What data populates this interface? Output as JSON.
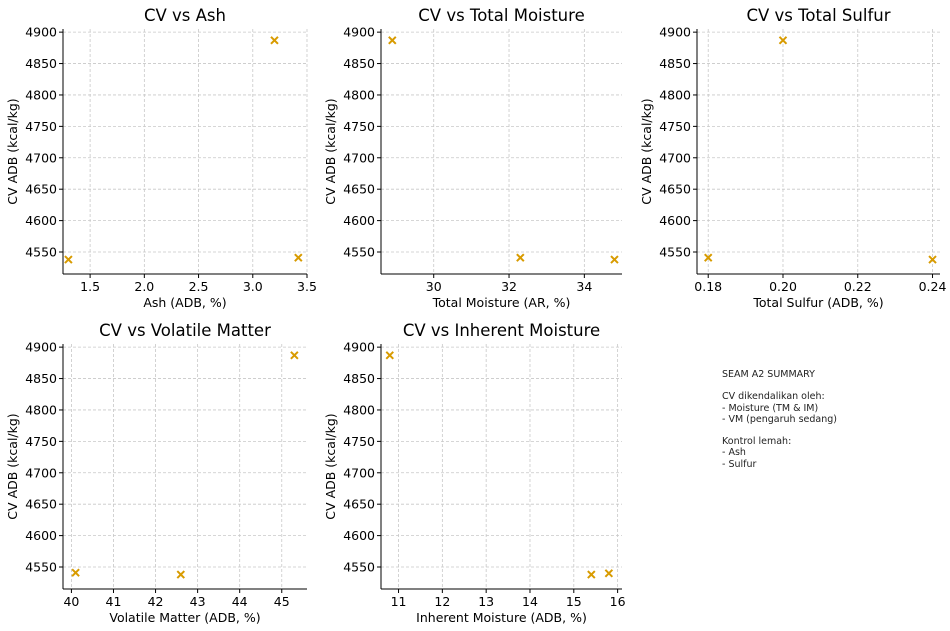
{
  "chart_data": [
    {
      "type": "scatter",
      "title": "CV vs Ash",
      "xlabel": "Ash (ADB, %)",
      "ylabel": "CV ADB (kcal/kg)",
      "xlim": [
        1.25,
        3.5
      ],
      "ylim": [
        4515,
        4905
      ],
      "xticks": [
        1.5,
        2.0,
        2.5,
        3.0,
        3.5
      ],
      "xtick_labels": [
        "1.5",
        "2.0",
        "2.5",
        "3.0",
        "3.5"
      ],
      "yticks": [
        4550,
        4600,
        4650,
        4700,
        4750,
        4800,
        4850,
        4900
      ],
      "ytick_labels": [
        "4550",
        "4600",
        "4650",
        "4700",
        "4750",
        "4800",
        "4850",
        "4900"
      ],
      "grid": true,
      "points": [
        {
          "x": 1.3,
          "y": 4538
        },
        {
          "x": 3.2,
          "y": 4887
        },
        {
          "x": 3.42,
          "y": 4541
        }
      ]
    },
    {
      "type": "scatter",
      "title": "CV vs Total Moisture",
      "xlabel": "Total Moisture (AR, %)",
      "ylabel": "CV ADB (kcal/kg)",
      "xlim": [
        28.6,
        35.0
      ],
      "ylim": [
        4515,
        4905
      ],
      "xticks": [
        30,
        32,
        34
      ],
      "xtick_labels": [
        "30",
        "32",
        "34"
      ],
      "yticks": [
        4550,
        4600,
        4650,
        4700,
        4750,
        4800,
        4850,
        4900
      ],
      "ytick_labels": [
        "4550",
        "4600",
        "4650",
        "4700",
        "4750",
        "4800",
        "4850",
        "4900"
      ],
      "grid": true,
      "points": [
        {
          "x": 28.9,
          "y": 4887
        },
        {
          "x": 32.3,
          "y": 4541
        },
        {
          "x": 34.8,
          "y": 4538
        }
      ]
    },
    {
      "type": "scatter",
      "title": "CV vs Total Sulfur",
      "xlabel": "Total Sulfur (ADB, %)",
      "ylabel": "CV ADB (kcal/kg)",
      "xlim": [
        0.177,
        0.242
      ],
      "ylim": [
        4515,
        4905
      ],
      "xticks": [
        0.18,
        0.2,
        0.22,
        0.24
      ],
      "xtick_labels": [
        "0.18",
        "0.20",
        "0.22",
        "0.24"
      ],
      "yticks": [
        4550,
        4600,
        4650,
        4700,
        4750,
        4800,
        4850,
        4900
      ],
      "ytick_labels": [
        "4550",
        "4600",
        "4650",
        "4700",
        "4750",
        "4800",
        "4850",
        "4900"
      ],
      "grid": true,
      "points": [
        {
          "x": 0.18,
          "y": 4541
        },
        {
          "x": 0.2,
          "y": 4887
        },
        {
          "x": 0.24,
          "y": 4538
        }
      ]
    },
    {
      "type": "scatter",
      "title": "CV vs Volatile Matter",
      "xlabel": "Volatile Matter (ADB, %)",
      "ylabel": "CV ADB (kcal/kg)",
      "xlim": [
        39.8,
        45.6
      ],
      "ylim": [
        4515,
        4905
      ],
      "xticks": [
        40,
        41,
        42,
        43,
        44,
        45
      ],
      "xtick_labels": [
        "40",
        "41",
        "42",
        "43",
        "44",
        "45"
      ],
      "yticks": [
        4550,
        4600,
        4650,
        4700,
        4750,
        4800,
        4850,
        4900
      ],
      "ytick_labels": [
        "4550",
        "4600",
        "4650",
        "4700",
        "4750",
        "4800",
        "4850",
        "4900"
      ],
      "grid": true,
      "points": [
        {
          "x": 40.1,
          "y": 4541
        },
        {
          "x": 42.6,
          "y": 4538
        },
        {
          "x": 45.3,
          "y": 4887
        }
      ]
    },
    {
      "type": "scatter",
      "title": "CV vs Inherent Moisture",
      "xlabel": "Inherent Moisture (ADB, %)",
      "ylabel": "CV ADB (kcal/kg)",
      "xlim": [
        10.6,
        16.1
      ],
      "ylim": [
        4515,
        4905
      ],
      "xticks": [
        11,
        12,
        13,
        14,
        15,
        16
      ],
      "xtick_labels": [
        "11",
        "12",
        "13",
        "14",
        "15",
        "16"
      ],
      "yticks": [
        4550,
        4600,
        4650,
        4700,
        4750,
        4800,
        4850,
        4900
      ],
      "ytick_labels": [
        "4550",
        "4600",
        "4650",
        "4700",
        "4750",
        "4800",
        "4850",
        "4900"
      ],
      "grid": true,
      "points": [
        {
          "x": 10.8,
          "y": 4887
        },
        {
          "x": 15.4,
          "y": 4538
        },
        {
          "x": 15.8,
          "y": 4540
        }
      ]
    }
  ],
  "colors": {
    "marker": "#d89b00",
    "grid": "#c8c8c8",
    "axis": "#000000"
  },
  "summary": {
    "lines": [
      "SEAM A2 SUMMARY",
      "",
      "CV dikendalikan oleh:",
      "- Moisture (TM & IM)",
      "- VM (pengaruh sedang)",
      "",
      "Kontrol lemah:",
      "- Ash",
      "- Sulfur"
    ]
  }
}
